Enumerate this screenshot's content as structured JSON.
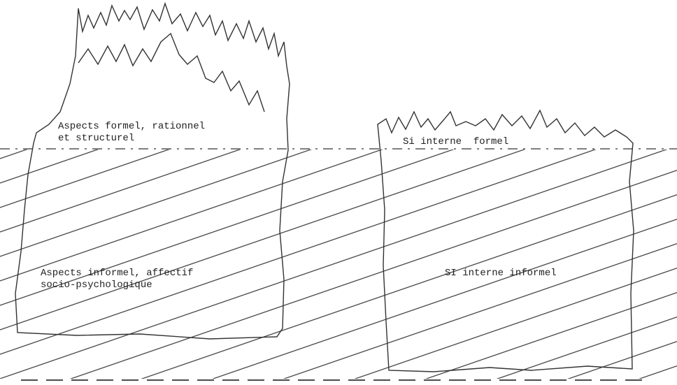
{
  "icebergs": [
    {
      "above_label": [
        "Aspects formel, rationnel",
        "et structurel"
      ],
      "below_label": [
        "Aspects informel, affectif",
        "socio-psychologique"
      ]
    },
    {
      "above_label": [
        "Si interne  formel"
      ],
      "below_label": [
        "SI interne informel"
      ]
    }
  ]
}
